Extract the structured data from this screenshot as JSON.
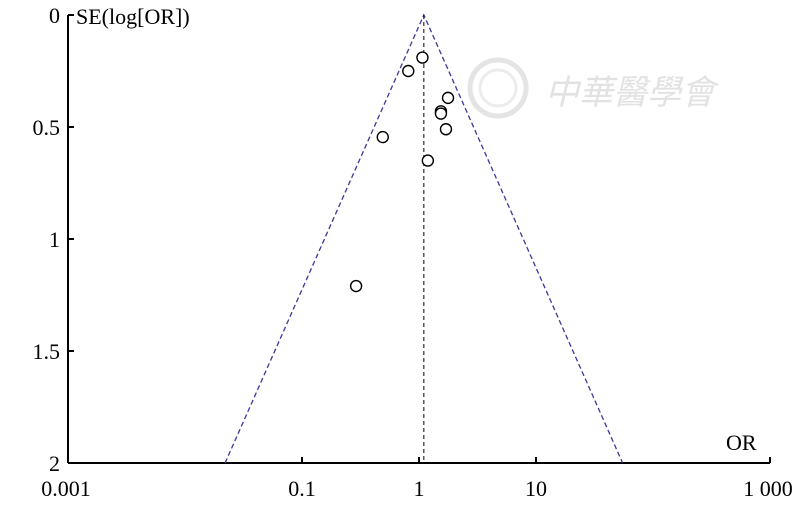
{
  "chart_data": {
    "type": "scatter",
    "subtype": "funnel-plot",
    "xlabel": "OR",
    "ylabel": "SE(log[OR])",
    "x_scale": "log",
    "xlim": [
      0.001,
      1000
    ],
    "ylim": [
      2,
      0
    ],
    "y_inverted": true,
    "x_ticks": [
      0.001,
      0.1,
      1,
      10,
      1000
    ],
    "x_tick_labels": [
      "0.001",
      "0.1",
      "1",
      "10",
      "1 000"
    ],
    "y_ticks": [
      0,
      0.5,
      1,
      1.5,
      2
    ],
    "y_tick_labels": [
      "0",
      "0.5",
      "1",
      "1.5",
      "2"
    ],
    "grid": false,
    "points": [
      {
        "or": 1.07,
        "se": 0.19
      },
      {
        "or": 0.81,
        "se": 0.25
      },
      {
        "or": 1.77,
        "se": 0.37
      },
      {
        "or": 1.54,
        "se": 0.43
      },
      {
        "or": 1.54,
        "se": 0.44
      },
      {
        "or": 1.7,
        "se": 0.51
      },
      {
        "or": 0.49,
        "se": 0.545
      },
      {
        "or": 1.19,
        "se": 0.65
      },
      {
        "or": 0.29,
        "se": 1.21
      }
    ],
    "pooled_or": 1.1,
    "funnel_limits_at_se_2": [
      0.022,
      55
    ],
    "colors": {
      "funnel": "#3a3a9a",
      "reference_line": "#000000",
      "points": "#000000"
    },
    "watermark": "中華醫學會"
  }
}
